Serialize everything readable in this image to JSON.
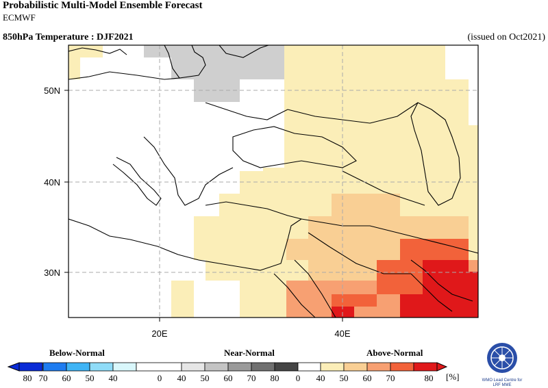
{
  "header": {
    "title": "Probabilistic Multi-Model Ensemble Forecast",
    "center": "ECMWF",
    "variable": "850hPa Temperature : DJF2021",
    "issued": "(issued on Oct2021)"
  },
  "map": {
    "lon_range": [
      10,
      55
    ],
    "lat_range": [
      25,
      55
    ],
    "lat_ticks": [
      {
        "value": 50,
        "label": "50N"
      },
      {
        "value": 40,
        "label": "40N"
      },
      {
        "value": 30,
        "label": "30N"
      }
    ],
    "lon_ticks": [
      {
        "value": 20,
        "label": "20E"
      },
      {
        "value": 40,
        "label": "40E"
      }
    ],
    "grid": "dashed"
  },
  "legend": {
    "categories": [
      "Below-Normal",
      "Near-Normal",
      "Above-Normal"
    ],
    "tick_labels": [
      "80",
      "70",
      "60",
      "50",
      "40",
      "0",
      "40",
      "50",
      "60",
      "70",
      "80",
      "0",
      "40",
      "50",
      "60",
      "70",
      "80"
    ],
    "unit": "[%]",
    "colors": {
      "below": [
        "#0a2bd6",
        "#1e7cf0",
        "#3fb4f5",
        "#8fdcf8",
        "#d9f7fb"
      ],
      "near": [
        "#e6e6e6",
        "#c4c4c4",
        "#9a9a9a",
        "#707070",
        "#454545"
      ],
      "above": [
        "#fbeeb8",
        "#f9cf94",
        "#f7a072",
        "#f2623a",
        "#e0181a"
      ]
    }
  },
  "logo": {
    "text_line1": "WMO Lead Centre for",
    "text_line2": "LRF MME"
  }
}
